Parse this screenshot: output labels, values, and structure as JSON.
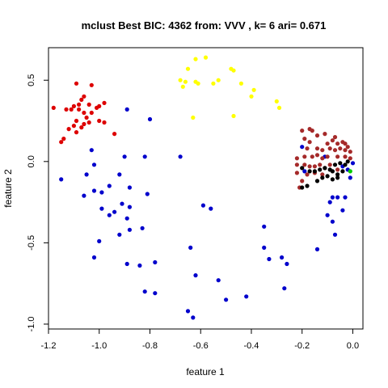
{
  "chart_data": {
    "type": "scatter",
    "title": "mclust Best BIC: 4362 from: VVV , k= 6 ari= 0.671",
    "xlabel": "feature 1",
    "ylabel": "feature 2",
    "xlim": [
      -1.2,
      0.04
    ],
    "ylim": [
      -1.03,
      0.7
    ],
    "x_ticks": [
      -1.2,
      -1.0,
      -0.8,
      -0.6,
      -0.4,
      -0.2,
      0.0
    ],
    "x_tick_labels": [
      "-1.2",
      "-1.0",
      "-0.8",
      "-0.6",
      "-0.4",
      "-0.2",
      "0.0"
    ],
    "y_ticks": [
      -1.0,
      -0.5,
      0.0,
      0.5
    ],
    "y_tick_labels": [
      "-1.0",
      "-0.5",
      "0.0",
      "0.5"
    ],
    "series": [
      {
        "name": "cluster-red",
        "color": "#dd0000",
        "points": [
          [
            -1.09,
            0.48
          ],
          [
            -1.03,
            0.47
          ],
          [
            -1.06,
            0.4
          ],
          [
            -1.07,
            0.38
          ],
          [
            -1.08,
            0.35
          ],
          [
            -1.1,
            0.34
          ],
          [
            -1.13,
            0.32
          ],
          [
            -1.11,
            0.32
          ],
          [
            -1.08,
            0.32
          ],
          [
            -1.04,
            0.35
          ],
          [
            -1.01,
            0.33
          ],
          [
            -1.0,
            0.34
          ],
          [
            -0.98,
            0.36
          ],
          [
            -1.03,
            0.3
          ],
          [
            -1.06,
            0.3
          ],
          [
            -1.05,
            0.27
          ],
          [
            -1.09,
            0.25
          ],
          [
            -1.1,
            0.22
          ],
          [
            -1.04,
            0.24
          ],
          [
            -1.06,
            0.23
          ],
          [
            -1.0,
            0.25
          ],
          [
            -0.98,
            0.24
          ],
          [
            -1.07,
            0.21
          ],
          [
            -1.12,
            0.2
          ],
          [
            -1.09,
            0.18
          ],
          [
            -1.14,
            0.14
          ],
          [
            -1.15,
            0.12
          ],
          [
            -1.18,
            0.33
          ],
          [
            -0.94,
            0.17
          ]
        ]
      },
      {
        "name": "cluster-yellow",
        "color": "#ffff00",
        "points": [
          [
            -0.62,
            0.63
          ],
          [
            -0.58,
            0.64
          ],
          [
            -0.65,
            0.57
          ],
          [
            -0.62,
            0.49
          ],
          [
            -0.66,
            0.49
          ],
          [
            -0.68,
            0.5
          ],
          [
            -0.67,
            0.46
          ],
          [
            -0.61,
            0.48
          ],
          [
            -0.53,
            0.5
          ],
          [
            -0.55,
            0.48
          ],
          [
            -0.48,
            0.57
          ],
          [
            -0.47,
            0.56
          ],
          [
            -0.44,
            0.48
          ],
          [
            -0.39,
            0.44
          ],
          [
            -0.4,
            0.4
          ],
          [
            -0.3,
            0.37
          ],
          [
            -0.29,
            0.33
          ],
          [
            -0.47,
            0.28
          ],
          [
            -0.63,
            0.27
          ]
        ]
      },
      {
        "name": "cluster-blue",
        "color": "#0000cc",
        "points": [
          [
            -0.89,
            0.32
          ],
          [
            -0.8,
            0.26
          ],
          [
            -1.03,
            0.07
          ],
          [
            -0.9,
            0.03
          ],
          [
            -0.82,
            0.03
          ],
          [
            -0.68,
            0.03
          ],
          [
            -1.02,
            -0.02
          ],
          [
            -1.15,
            -0.11
          ],
          [
            -1.05,
            -0.08
          ],
          [
            -0.92,
            -0.08
          ],
          [
            -0.96,
            -0.15
          ],
          [
            -0.88,
            -0.16
          ],
          [
            -1.02,
            -0.18
          ],
          [
            -0.99,
            -0.19
          ],
          [
            -1.06,
            -0.21
          ],
          [
            -0.81,
            -0.2
          ],
          [
            -0.91,
            -0.26
          ],
          [
            -0.88,
            -0.28
          ],
          [
            -0.99,
            -0.29
          ],
          [
            -0.94,
            -0.31
          ],
          [
            -0.96,
            -0.33
          ],
          [
            -0.89,
            -0.35
          ],
          [
            -0.83,
            -0.41
          ],
          [
            -0.88,
            -0.42
          ],
          [
            -0.92,
            -0.45
          ],
          [
            -1.0,
            -0.49
          ],
          [
            -0.59,
            -0.27
          ],
          [
            -0.56,
            -0.29
          ],
          [
            -0.64,
            -0.53
          ],
          [
            -1.02,
            -0.59
          ],
          [
            -0.89,
            -0.63
          ],
          [
            -0.84,
            -0.64
          ],
          [
            -0.78,
            -0.62
          ],
          [
            -0.62,
            -0.7
          ],
          [
            -0.53,
            -0.73
          ],
          [
            -0.82,
            -0.8
          ],
          [
            -0.78,
            -0.81
          ],
          [
            -0.5,
            -0.85
          ],
          [
            -0.42,
            -0.83
          ],
          [
            -0.65,
            -0.92
          ],
          [
            -0.63,
            -0.96
          ],
          [
            -0.35,
            -0.4
          ],
          [
            -0.35,
            -0.53
          ],
          [
            -0.33,
            -0.6
          ],
          [
            -0.28,
            -0.59
          ],
          [
            -0.26,
            -0.63
          ],
          [
            -0.27,
            -0.78
          ],
          [
            -0.14,
            -0.54
          ],
          [
            -0.1,
            -0.33
          ],
          [
            -0.08,
            -0.37
          ],
          [
            -0.07,
            -0.45
          ],
          [
            -0.09,
            -0.25
          ],
          [
            -0.06,
            -0.22
          ],
          [
            -0.08,
            -0.22
          ],
          [
            -0.04,
            -0.3
          ],
          [
            -0.03,
            -0.22
          ],
          [
            -0.01,
            -0.1
          ],
          [
            -0.02,
            -0.05
          ],
          [
            -0.04,
            -0.03
          ],
          [
            0.0,
            -0.01
          ],
          [
            -0.11,
            0.03
          ],
          [
            -0.19,
            -0.06
          ],
          [
            -0.2,
            0.09
          ]
        ]
      },
      {
        "name": "cluster-brown",
        "color": "#a52a2a",
        "points": [
          [
            -0.2,
            0.19
          ],
          [
            -0.17,
            0.2
          ],
          [
            -0.16,
            0.19
          ],
          [
            -0.14,
            0.16
          ],
          [
            -0.11,
            0.17
          ],
          [
            -0.07,
            0.15
          ],
          [
            -0.19,
            0.14
          ],
          [
            -0.17,
            0.12
          ],
          [
            -0.08,
            0.13
          ],
          [
            -0.1,
            0.11
          ],
          [
            -0.06,
            0.11
          ],
          [
            -0.04,
            0.12
          ],
          [
            -0.03,
            0.11
          ],
          [
            -0.18,
            0.08
          ],
          [
            -0.14,
            0.08
          ],
          [
            -0.12,
            0.07
          ],
          [
            -0.09,
            0.08
          ],
          [
            -0.07,
            0.07
          ],
          [
            -0.05,
            0.08
          ],
          [
            -0.03,
            0.07
          ],
          [
            -0.02,
            0.09
          ],
          [
            -0.01,
            0.06
          ],
          [
            -0.22,
            0.02
          ],
          [
            -0.19,
            0.03
          ],
          [
            -0.16,
            0.03
          ],
          [
            -0.14,
            0.04
          ],
          [
            -0.12,
            0.02
          ],
          [
            -0.1,
            0.03
          ],
          [
            -0.06,
            0.03
          ],
          [
            -0.03,
            0.03
          ],
          [
            -0.01,
            0.02
          ],
          [
            -0.22,
            -0.02
          ],
          [
            -0.19,
            -0.02
          ],
          [
            -0.17,
            -0.03
          ],
          [
            -0.15,
            -0.03
          ],
          [
            -0.13,
            -0.02
          ],
          [
            -0.11,
            -0.04
          ],
          [
            -0.09,
            -0.02
          ],
          [
            -0.06,
            -0.05
          ],
          [
            -0.22,
            -0.07
          ],
          [
            -0.18,
            -0.08
          ],
          [
            -0.15,
            -0.07
          ],
          [
            -0.12,
            -0.08
          ],
          [
            -0.2,
            -0.12
          ],
          [
            -0.21,
            -0.16
          ]
        ]
      },
      {
        "name": "cluster-black",
        "color": "#000000",
        "points": [
          [
            -0.2,
            -0.04
          ],
          [
            -0.17,
            -0.06
          ],
          [
            -0.15,
            -0.06
          ],
          [
            -0.13,
            -0.05
          ],
          [
            -0.11,
            -0.04
          ],
          [
            -0.09,
            -0.05
          ],
          [
            -0.08,
            -0.06
          ],
          [
            -0.06,
            -0.08
          ],
          [
            -0.04,
            -0.06
          ],
          [
            -0.07,
            -0.02
          ],
          [
            -0.05,
            -0.01
          ],
          [
            -0.03,
            -0.02
          ],
          [
            -0.02,
            0.0
          ],
          [
            -0.12,
            -0.1
          ],
          [
            -0.14,
            -0.12
          ],
          [
            -0.1,
            -0.09
          ],
          [
            -0.08,
            -0.11
          ],
          [
            -0.06,
            -0.1
          ],
          [
            -0.2,
            -0.16
          ],
          [
            -0.18,
            -0.15
          ]
        ]
      },
      {
        "name": "cluster-green",
        "color": "#00cc00",
        "points": [
          [
            -0.01,
            -0.06
          ]
        ]
      }
    ]
  }
}
